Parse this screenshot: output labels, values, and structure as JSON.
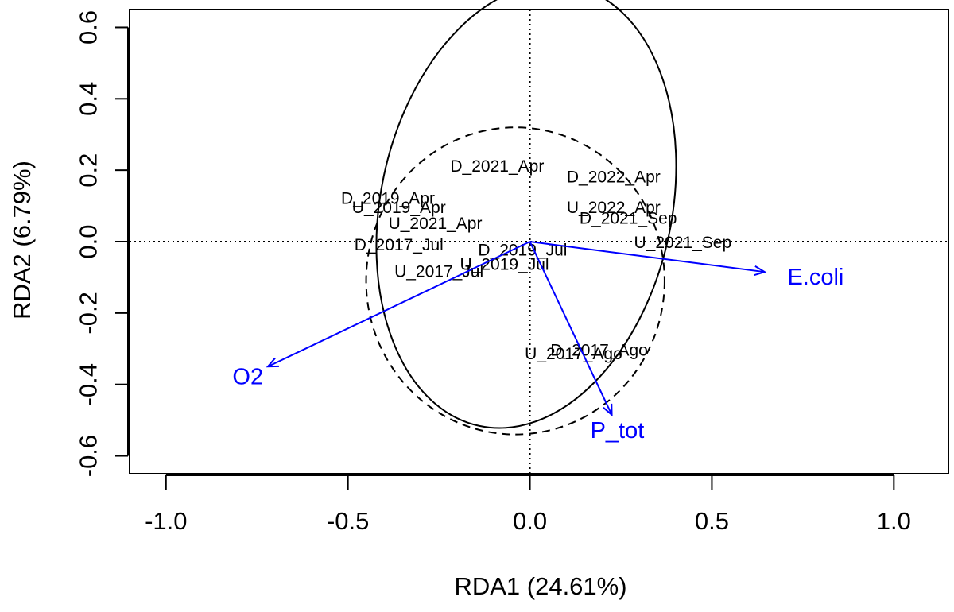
{
  "chart_data": {
    "type": "scatter",
    "title": "",
    "xlabel": "RDA1 (24.61%)",
    "ylabel": "RDA2 (6.79%)",
    "xlim": [
      -1.1,
      1.15
    ],
    "ylim": [
      -0.65,
      0.65
    ],
    "xticks": [
      -1.0,
      -0.5,
      0.0,
      0.5,
      1.0
    ],
    "xtick_labels": [
      "-1.0",
      "-0.5",
      "0.0",
      "0.5",
      "1.0"
    ],
    "yticks": [
      -0.6,
      -0.4,
      -0.2,
      0.0,
      0.2,
      0.4,
      0.6
    ],
    "ytick_labels": [
      "-0.6",
      "-0.4",
      "-0.2",
      "0.0",
      "0.2",
      "0.4",
      "0.6"
    ],
    "reference_lines": {
      "x": 0,
      "y": 0,
      "style": "dotted"
    },
    "sites": [
      {
        "label": "D_2021_Apr",
        "x": -0.09,
        "y": 0.21
      },
      {
        "label": "D_2022_Apr",
        "x": 0.23,
        "y": 0.18
      },
      {
        "label": "D_2019_Apr",
        "x": -0.39,
        "y": 0.12
      },
      {
        "label": "U_2019_Apr",
        "x": -0.36,
        "y": 0.095
      },
      {
        "label": "U_2022_Apr",
        "x": 0.23,
        "y": 0.095
      },
      {
        "label": "U_2021_Apr",
        "x": -0.26,
        "y": 0.05
      },
      {
        "label": "D_2021_Sep",
        "x": 0.27,
        "y": 0.065
      },
      {
        "label": "U_2021_Sep",
        "x": 0.42,
        "y": -0.003
      },
      {
        "label": "D_2017_Jul",
        "x": -0.36,
        "y": -0.01
      },
      {
        "label": "D_2019_Jul",
        "x": -0.02,
        "y": -0.025
      },
      {
        "label": "U_2019_Jul",
        "x": -0.07,
        "y": -0.065
      },
      {
        "label": "U_2017_Jul",
        "x": -0.25,
        "y": -0.085
      },
      {
        "label": "D_2017_Ago",
        "x": 0.19,
        "y": -0.305
      },
      {
        "label": "U_2017_Ago",
        "x": 0.12,
        "y": -0.315
      }
    ],
    "biplot_arrows": [
      {
        "label": "E.coli",
        "x": 0.645,
        "y": -0.085,
        "label_x": 0.785,
        "label_y": -0.1
      },
      {
        "label": "O2",
        "x": -0.72,
        "y": -0.35,
        "label_x": -0.775,
        "label_y": -0.38
      },
      {
        "label": "P_tot",
        "x": 0.225,
        "y": -0.485,
        "label_x": 0.24,
        "label_y": -0.53
      }
    ],
    "ellipses": [
      {
        "style": "solid",
        "cx": -0.01,
        "cy": 0.1,
        "rx": 0.4,
        "ry": 0.63,
        "rotation_deg": 12
      },
      {
        "style": "dashed",
        "cx": -0.04,
        "cy": -0.11,
        "rx": 0.41,
        "ry": 0.43,
        "rotation_deg": 0
      }
    ],
    "colors": {
      "axes": "#000000",
      "sites": "#000000",
      "arrows": "#0000ff"
    }
  }
}
